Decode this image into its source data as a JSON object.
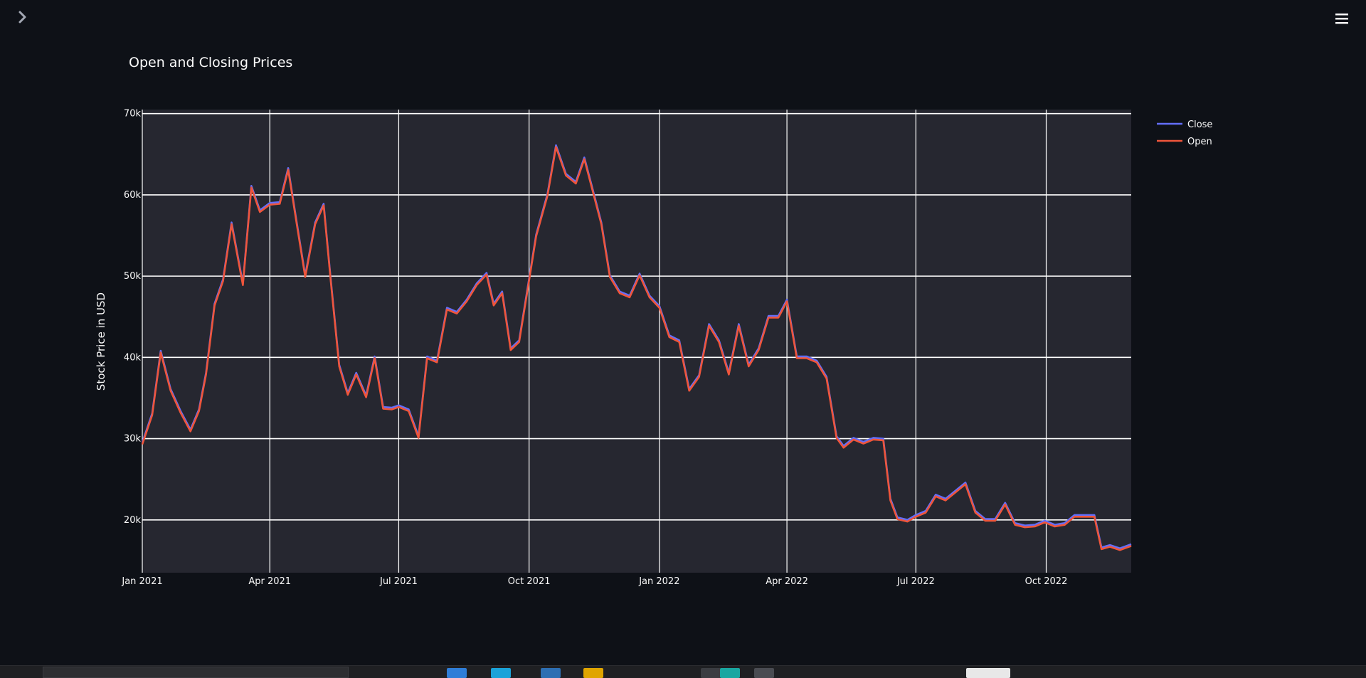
{
  "app": {
    "sidebar_toggle_icon": "chevron-right-icon",
    "menu_icon": "hamburger-menu-icon"
  },
  "chart_data": {
    "type": "line",
    "title": "Open and Closing Prices",
    "xlabel": "",
    "ylabel": "Stock Price in USD",
    "ylim": [
      13500,
      70500
    ],
    "xlim": [
      "2021-01-01",
      "2022-11-30"
    ],
    "grid": true,
    "legend_position": "top-right",
    "x_ticks": [
      {
        "date": "2021-01-01",
        "label": "Jan 2021"
      },
      {
        "date": "2021-04-01",
        "label": "Apr 2021"
      },
      {
        "date": "2021-07-01",
        "label": "Jul 2021"
      },
      {
        "date": "2021-10-01",
        "label": "Oct 2021"
      },
      {
        "date": "2022-01-01",
        "label": "Jan 2022"
      },
      {
        "date": "2022-04-01",
        "label": "Apr 2022"
      },
      {
        "date": "2022-07-01",
        "label": "Jul 2022"
      },
      {
        "date": "2022-10-01",
        "label": "Oct 2022"
      }
    ],
    "y_ticks": [
      {
        "value": 20000,
        "label": "20k"
      },
      {
        "value": 30000,
        "label": "30k"
      },
      {
        "value": 40000,
        "label": "40k"
      },
      {
        "value": 50000,
        "label": "50k"
      },
      {
        "value": 60000,
        "label": "60k"
      },
      {
        "value": 70000,
        "label": "70k"
      }
    ],
    "colors": {
      "Close": "#636efa",
      "Open": "#ef553b"
    },
    "x": [
      "2021-01-01",
      "2021-01-08",
      "2021-01-14",
      "2021-01-21",
      "2021-01-28",
      "2021-02-04",
      "2021-02-10",
      "2021-02-15",
      "2021-02-21",
      "2021-02-27",
      "2021-03-05",
      "2021-03-13",
      "2021-03-19",
      "2021-03-25",
      "2021-04-01",
      "2021-04-08",
      "2021-04-14",
      "2021-04-20",
      "2021-04-26",
      "2021-05-03",
      "2021-05-09",
      "2021-05-14",
      "2021-05-20",
      "2021-05-26",
      "2021-06-01",
      "2021-06-08",
      "2021-06-14",
      "2021-06-20",
      "2021-06-26",
      "2021-07-01",
      "2021-07-08",
      "2021-07-15",
      "2021-07-21",
      "2021-07-28",
      "2021-08-04",
      "2021-08-11",
      "2021-08-18",
      "2021-08-25",
      "2021-09-01",
      "2021-09-06",
      "2021-09-12",
      "2021-09-18",
      "2021-09-24",
      "2021-09-30",
      "2021-10-06",
      "2021-10-14",
      "2021-10-20",
      "2021-10-27",
      "2021-11-03",
      "2021-11-09",
      "2021-11-15",
      "2021-11-21",
      "2021-11-27",
      "2021-12-04",
      "2021-12-11",
      "2021-12-18",
      "2021-12-25",
      "2022-01-01",
      "2022-01-08",
      "2022-01-15",
      "2022-01-22",
      "2022-01-29",
      "2022-02-05",
      "2022-02-12",
      "2022-02-19",
      "2022-02-26",
      "2022-03-05",
      "2022-03-12",
      "2022-03-19",
      "2022-03-26",
      "2022-04-01",
      "2022-04-08",
      "2022-04-15",
      "2022-04-22",
      "2022-04-29",
      "2022-05-06",
      "2022-05-11",
      "2022-05-18",
      "2022-05-25",
      "2022-06-01",
      "2022-06-08",
      "2022-06-13",
      "2022-06-18",
      "2022-06-25",
      "2022-07-01",
      "2022-07-08",
      "2022-07-15",
      "2022-07-22",
      "2022-07-29",
      "2022-08-05",
      "2022-08-12",
      "2022-08-19",
      "2022-08-26",
      "2022-09-02",
      "2022-09-09",
      "2022-09-16",
      "2022-09-23",
      "2022-09-30",
      "2022-10-07",
      "2022-10-14",
      "2022-10-21",
      "2022-10-28",
      "2022-11-04",
      "2022-11-09",
      "2022-11-15",
      "2022-11-22",
      "2022-11-30"
    ],
    "series": [
      {
        "name": "Close",
        "values": [
          29400,
          33000,
          40700,
          36000,
          33300,
          31000,
          33500,
          38000,
          46500,
          49500,
          56500,
          49000,
          61000,
          58000,
          58900,
          59000,
          63200,
          56500,
          50000,
          56500,
          58800,
          49500,
          39000,
          35500,
          38000,
          35200,
          40000,
          33800,
          33700,
          34000,
          33500,
          30200,
          40000,
          39500,
          46000,
          45500,
          47000,
          49000,
          50300,
          46500,
          48000,
          41000,
          42000,
          48500,
          55000,
          60000,
          66000,
          62500,
          61500,
          64500,
          60500,
          56500,
          50000,
          48000,
          47500,
          50200,
          47500,
          46200,
          42600,
          42000,
          36000,
          37700,
          44000,
          42000,
          38000,
          44000,
          39000,
          41000,
          45000,
          45000,
          47000,
          40000,
          40000,
          39500,
          37500,
          30200,
          29000,
          30000,
          29500,
          30000,
          29900,
          22500,
          20200,
          19900,
          20500,
          21000,
          23000,
          22500,
          23500,
          24500,
          21000,
          20000,
          20000,
          22000,
          19500,
          19200,
          19300,
          19800,
          19300,
          19500,
          20500,
          20500,
          20500,
          16500,
          16800,
          16400,
          16900
        ]
      },
      {
        "name": "Open",
        "values": [
          29400,
          33000,
          40700,
          36000,
          33300,
          31000,
          33500,
          38000,
          46500,
          49500,
          56500,
          49000,
          61000,
          58000,
          58900,
          59000,
          63200,
          56500,
          50000,
          56500,
          58800,
          49500,
          39000,
          35500,
          38000,
          35200,
          40000,
          33800,
          33700,
          34000,
          33500,
          30200,
          40000,
          39500,
          46000,
          45500,
          47000,
          49000,
          50300,
          46500,
          48000,
          41000,
          42000,
          48500,
          55000,
          60000,
          66000,
          62500,
          61500,
          64500,
          60500,
          56500,
          50000,
          48000,
          47500,
          50200,
          47500,
          46200,
          42600,
          42000,
          36000,
          37700,
          44000,
          42000,
          38000,
          44000,
          39000,
          41000,
          45000,
          45000,
          47000,
          40000,
          40000,
          39500,
          37500,
          30200,
          29000,
          30000,
          29500,
          30000,
          29900,
          22500,
          20200,
          19900,
          20500,
          21000,
          23000,
          22500,
          23500,
          24500,
          21000,
          20000,
          20000,
          22000,
          19500,
          19200,
          19300,
          19800,
          19300,
          19500,
          20500,
          20500,
          20500,
          16500,
          16800,
          16400,
          16900
        ]
      }
    ]
  }
}
